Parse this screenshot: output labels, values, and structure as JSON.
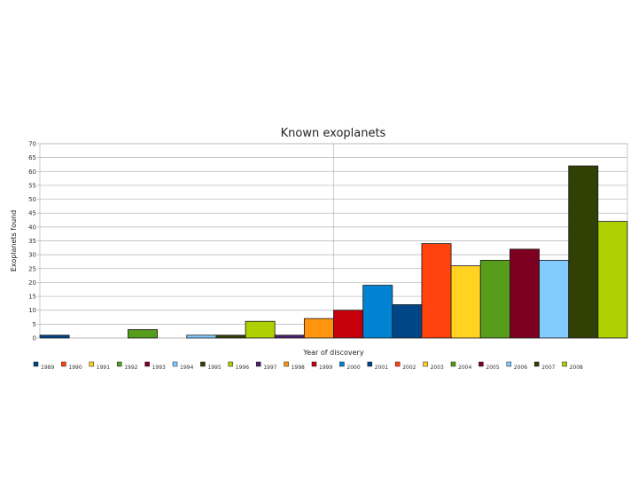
{
  "chart_data": {
    "type": "bar",
    "title": "Known exoplanets",
    "xlabel": "Year of discovery",
    "ylabel": "Exoplanets found",
    "ylim": [
      0,
      70
    ],
    "ytick_step": 5,
    "grid": true,
    "legend_position": "bottom",
    "categories": [
      "1989",
      "1990",
      "1991",
      "1992",
      "1993",
      "1994",
      "1995",
      "1996",
      "1997",
      "1998",
      "1999",
      "2000",
      "2001",
      "2002",
      "2003",
      "2004",
      "2005",
      "2006",
      "2007",
      "2008"
    ],
    "values": [
      1,
      0,
      0,
      3,
      0,
      1,
      1,
      6,
      1,
      7,
      10,
      19,
      12,
      34,
      26,
      28,
      32,
      28,
      62,
      42
    ],
    "colors": [
      "#004586",
      "#ff420e",
      "#ffd320",
      "#579d1c",
      "#7e0021",
      "#83caff",
      "#314004",
      "#aecf00",
      "#4b1f6f",
      "#ff950e",
      "#c5000b",
      "#0084d1",
      "#004586",
      "#ff420e",
      "#ffd320",
      "#579d1c",
      "#7e0021",
      "#83caff",
      "#314004",
      "#aecf00"
    ]
  }
}
